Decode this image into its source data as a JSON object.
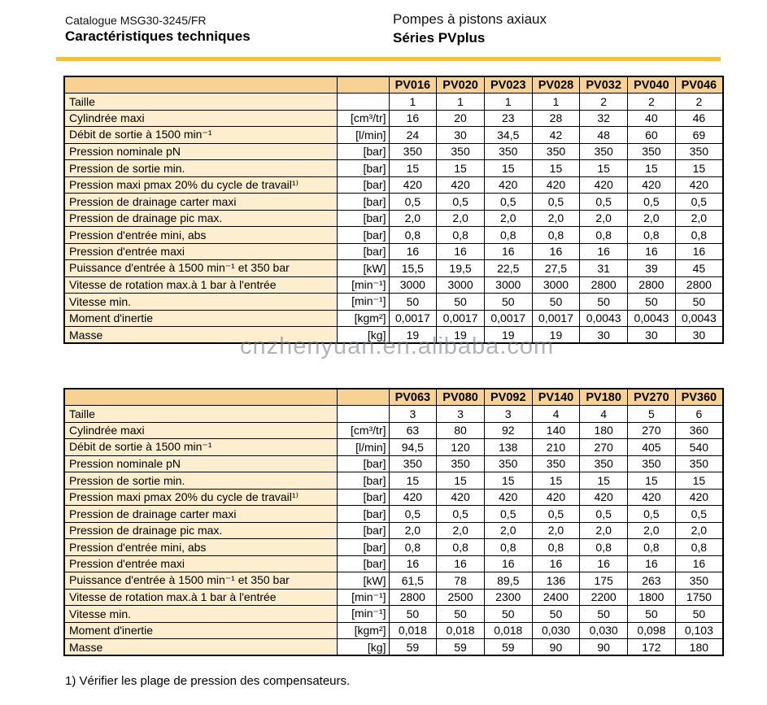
{
  "header": {
    "catalogue": "Catalogue MSG30-3245/FR",
    "title_left": "Caractéristiques techniques",
    "title_right_line1": "Pompes à pistons axiaux",
    "title_right_line2": "Séries PVplus"
  },
  "colors": {
    "accent_gold": "#EFC042",
    "header_cell_bg": "#F8D295",
    "label_cell_bg": "#FCEECF",
    "border": "#000000"
  },
  "watermark": "cnzhenyuan.en.alibaba.com",
  "footnote": "1) Vérifier les plage de pression des compensateurs.",
  "tables": [
    {
      "models": [
        "PV016",
        "PV020",
        "PV023",
        "PV028",
        "PV032",
        "PV040",
        "PV046"
      ],
      "rows": [
        {
          "label": "Taille",
          "unit": "",
          "values": [
            "1",
            "1",
            "1",
            "1",
            "2",
            "2",
            "2"
          ]
        },
        {
          "label": "Cylindrée maxi",
          "unit": "[cm³/tr]",
          "values": [
            "16",
            "20",
            "23",
            "28",
            "32",
            "40",
            "46"
          ]
        },
        {
          "label": "Débit de sortie à 1500 min⁻¹",
          "unit": "[l/min]",
          "values": [
            "24",
            "30",
            "34,5",
            "42",
            "48",
            "60",
            "69"
          ]
        },
        {
          "label": "Pression nominale pN",
          "unit": "[bar]",
          "values": [
            "350",
            "350",
            "350",
            "350",
            "350",
            "350",
            "350"
          ]
        },
        {
          "label": "Pression de sortie min.",
          "unit": "[bar]",
          "values": [
            "15",
            "15",
            "15",
            "15",
            "15",
            "15",
            "15"
          ]
        },
        {
          "label": "Pression maxi pmax 20% du cycle de travail¹⁾",
          "unit": "[bar]",
          "values": [
            "420",
            "420",
            "420",
            "420",
            "420",
            "420",
            "420"
          ]
        },
        {
          "label": "Pression de drainage carter maxi",
          "unit": "[bar]",
          "values": [
            "0,5",
            "0,5",
            "0,5",
            "0,5",
            "0,5",
            "0,5",
            "0,5"
          ]
        },
        {
          "label": "Pression de drainage pic max.",
          "unit": "[bar]",
          "values": [
            "2,0",
            "2,0",
            "2,0",
            "2,0",
            "2,0",
            "2,0",
            "2,0"
          ]
        },
        {
          "label": "Pression d'entrée mini, abs",
          "unit": "[bar]",
          "values": [
            "0,8",
            "0,8",
            "0,8",
            "0,8",
            "0,8",
            "0,8",
            "0,8"
          ]
        },
        {
          "label": "Pression d'entrée maxi",
          "unit": "[bar]",
          "values": [
            "16",
            "16",
            "16",
            "16",
            "16",
            "16",
            "16"
          ]
        },
        {
          "label": "Puissance d'entrée à 1500 min⁻¹ et 350 bar",
          "unit": "[kW]",
          "values": [
            "15,5",
            "19,5",
            "22,5",
            "27,5",
            "31",
            "39",
            "45"
          ]
        },
        {
          "label": "Vitesse de rotation max.à 1 bar à l'entrée",
          "unit": "[min⁻¹]",
          "values": [
            "3000",
            "3000",
            "3000",
            "3000",
            "2800",
            "2800",
            "2800"
          ]
        },
        {
          "label": "Vitesse min.",
          "unit": "[min⁻¹]",
          "values": [
            "50",
            "50",
            "50",
            "50",
            "50",
            "50",
            "50"
          ]
        },
        {
          "label": "Moment d'inertie",
          "unit": "[kgm²]",
          "values": [
            "0,0017",
            "0,0017",
            "0,0017",
            "0,0017",
            "0,0043",
            "0,0043",
            "0,0043"
          ]
        },
        {
          "label": "Masse",
          "unit": "[kg]",
          "values": [
            "19",
            "19",
            "19",
            "19",
            "30",
            "30",
            "30"
          ]
        }
      ]
    },
    {
      "models": [
        "PV063",
        "PV080",
        "PV092",
        "PV140",
        "PV180",
        "PV270",
        "PV360"
      ],
      "rows": [
        {
          "label": "Taille",
          "unit": "",
          "values": [
            "3",
            "3",
            "3",
            "4",
            "4",
            "5",
            "6"
          ]
        },
        {
          "label": "Cylindrée maxi",
          "unit": "[cm³/tr]",
          "values": [
            "63",
            "80",
            "92",
            "140",
            "180",
            "270",
            "360"
          ]
        },
        {
          "label": "Débit de sortie à 1500 min⁻¹",
          "unit": "[l/min]",
          "values": [
            "94,5",
            "120",
            "138",
            "210",
            "270",
            "405",
            "540"
          ]
        },
        {
          "label": "Pression nominale pN",
          "unit": "[bar]",
          "values": [
            "350",
            "350",
            "350",
            "350",
            "350",
            "350",
            "350"
          ]
        },
        {
          "label": "Pression de sortie min.",
          "unit": "[bar]",
          "values": [
            "15",
            "15",
            "15",
            "15",
            "15",
            "15",
            "15"
          ]
        },
        {
          "label": "Pression maxi pmax 20% du cycle de travail¹⁾",
          "unit": "[bar]",
          "values": [
            "420",
            "420",
            "420",
            "420",
            "420",
            "420",
            "420"
          ]
        },
        {
          "label": "Pression de drainage carter maxi",
          "unit": "[bar]",
          "values": [
            "0,5",
            "0,5",
            "0,5",
            "0,5",
            "0,5",
            "0,5",
            "0,5"
          ]
        },
        {
          "label": "Pression de drainage pic max.",
          "unit": "[bar]",
          "values": [
            "2,0",
            "2,0",
            "2,0",
            "2,0",
            "2,0",
            "2,0",
            "2,0"
          ]
        },
        {
          "label": "Pression d'entrée mini, abs",
          "unit": "[bar]",
          "values": [
            "0,8",
            "0,8",
            "0,8",
            "0,8",
            "0,8",
            "0,8",
            "0,8"
          ]
        },
        {
          "label": "Pression d'entrée maxi",
          "unit": "[bar]",
          "values": [
            "16",
            "16",
            "16",
            "16",
            "16",
            "16",
            "16"
          ]
        },
        {
          "label": "Puissance d'entrée à 1500 min⁻¹ et 350 bar",
          "unit": "[kW]",
          "values": [
            "61,5",
            "78",
            "89,5",
            "136",
            "175",
            "263",
            "350"
          ]
        },
        {
          "label": "Vitesse de rotation max.à 1 bar à l'entrée",
          "unit": "[min⁻¹]",
          "values": [
            "2800",
            "2500",
            "2300",
            "2400",
            "2200",
            "1800",
            "1750"
          ]
        },
        {
          "label": "Vitesse min.",
          "unit": "[min⁻¹]",
          "values": [
            "50",
            "50",
            "50",
            "50",
            "50",
            "50",
            "50"
          ]
        },
        {
          "label": "Moment d'inertie",
          "unit": "[kgm²]",
          "values": [
            "0,018",
            "0,018",
            "0,018",
            "0,030",
            "0,030",
            "0,098",
            "0,103"
          ]
        },
        {
          "label": "Masse",
          "unit": "[kg]",
          "values": [
            "59",
            "59",
            "59",
            "90",
            "90",
            "172",
            "180"
          ]
        }
      ]
    }
  ]
}
